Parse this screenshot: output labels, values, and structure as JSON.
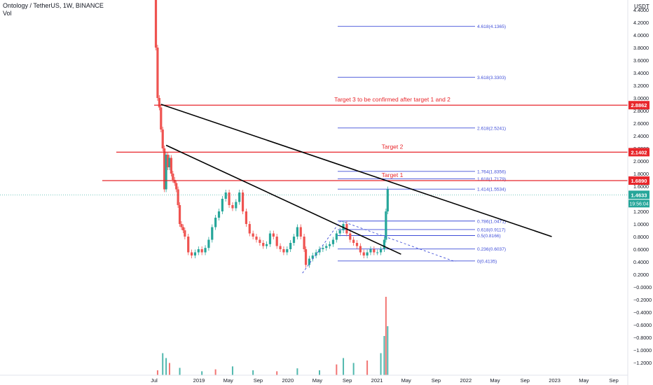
{
  "header": {
    "title": "Ontology / TetherUS, 1W, BINANCE",
    "volume_label": "Vol"
  },
  "chart_data": {
    "type": "candlestick",
    "currency": "USDT",
    "ylim": [
      -1.2,
      4.8
    ],
    "y_ticks": [
      "4.4000",
      "4.2000",
      "4.0000",
      "3.8000",
      "3.6000",
      "3.4000",
      "3.2000",
      "3.0000",
      "2.8000",
      "2.6000",
      "2.4000",
      "2.2000",
      "2.0000",
      "1.8000",
      "1.6000",
      "1.2000",
      "1.0000",
      "0.8000",
      "0.6000",
      "0.4000",
      "0.2000",
      "−0.0000",
      "−0.2000",
      "−0.4000",
      "−0.6000",
      "−0.8000",
      "−1.0000",
      "−1.2000"
    ],
    "y_tick_values": [
      4.4,
      4.2,
      4.0,
      3.8,
      3.6,
      3.4,
      3.2,
      3.0,
      2.8,
      2.6,
      2.4,
      2.2,
      2.0,
      1.8,
      1.6,
      1.2,
      1.0,
      0.8,
      0.6,
      0.4,
      0.2,
      0,
      -0.2,
      -0.4,
      -0.6,
      -0.8,
      -1.0,
      -1.2
    ],
    "x_ticks": [
      "Jul",
      "2019",
      "May",
      "Sep",
      "2020",
      "May",
      "Sep",
      "2021",
      "May",
      "Sep",
      "2022",
      "May",
      "Sep",
      "2023",
      "May",
      "Sep"
    ],
    "x_tick_dates": [
      "2018-07-01",
      "2019-01-01",
      "2019-05-01",
      "2019-09-01",
      "2020-01-01",
      "2020-05-01",
      "2020-09-01",
      "2021-01-01",
      "2021-05-01",
      "2021-09-01",
      "2022-01-01",
      "2022-05-01",
      "2022-09-01",
      "2023-01-01",
      "2023-05-01",
      "2023-09-01"
    ],
    "price_path": [
      [
        "2018-07-01",
        4.7
      ],
      [
        "2018-07-08",
        3.8
      ],
      [
        "2018-07-15",
        3.0
      ],
      [
        "2018-07-22",
        2.85
      ],
      [
        "2018-07-29",
        2.5
      ],
      [
        "2018-08-05",
        2.2
      ],
      [
        "2018-08-12",
        1.55
      ],
      [
        "2018-08-19",
        2.1
      ],
      [
        "2018-08-26",
        1.9
      ],
      [
        "2018-09-02",
        2.05
      ],
      [
        "2018-09-09",
        1.8
      ],
      [
        "2018-09-16",
        1.7
      ],
      [
        "2018-09-23",
        1.65
      ],
      [
        "2018-09-30",
        1.55
      ],
      [
        "2018-10-07",
        1.3
      ],
      [
        "2018-10-14",
        1.0
      ],
      [
        "2018-10-21",
        0.95
      ],
      [
        "2018-10-28",
        0.9
      ],
      [
        "2018-11-04",
        0.8
      ],
      [
        "2018-11-18",
        0.55
      ],
      [
        "2018-12-02",
        0.5
      ],
      [
        "2018-12-16",
        0.55
      ],
      [
        "2018-12-30",
        0.6
      ],
      [
        "2019-01-13",
        0.55
      ],
      [
        "2019-01-27",
        0.62
      ],
      [
        "2019-02-10",
        0.75
      ],
      [
        "2019-02-24",
        0.95
      ],
      [
        "2019-03-10",
        1.1
      ],
      [
        "2019-03-24",
        1.2
      ],
      [
        "2019-04-07",
        1.4
      ],
      [
        "2019-04-21",
        1.5
      ],
      [
        "2019-05-05",
        1.3
      ],
      [
        "2019-05-19",
        1.25
      ],
      [
        "2019-06-02",
        1.35
      ],
      [
        "2019-06-16",
        1.5
      ],
      [
        "2019-06-30",
        1.2
      ],
      [
        "2019-07-14",
        1.0
      ],
      [
        "2019-07-28",
        0.85
      ],
      [
        "2019-08-11",
        0.8
      ],
      [
        "2019-08-25",
        0.75
      ],
      [
        "2019-09-08",
        0.7
      ],
      [
        "2019-09-22",
        0.65
      ],
      [
        "2019-10-06",
        0.68
      ],
      [
        "2019-10-20",
        0.85
      ],
      [
        "2019-11-03",
        0.8
      ],
      [
        "2019-11-17",
        0.65
      ],
      [
        "2019-12-01",
        0.6
      ],
      [
        "2019-12-15",
        0.55
      ],
      [
        "2019-12-29",
        0.6
      ],
      [
        "2020-01-12",
        0.7
      ],
      [
        "2020-01-26",
        0.8
      ],
      [
        "2020-02-09",
        0.95
      ],
      [
        "2020-02-23",
        0.8
      ],
      [
        "2020-03-08",
        0.6
      ],
      [
        "2020-03-15",
        0.35
      ],
      [
        "2020-03-29",
        0.45
      ],
      [
        "2020-04-12",
        0.5
      ],
      [
        "2020-04-26",
        0.55
      ],
      [
        "2020-05-10",
        0.6
      ],
      [
        "2020-05-24",
        0.62
      ],
      [
        "2020-06-07",
        0.65
      ],
      [
        "2020-06-21",
        0.68
      ],
      [
        "2020-07-05",
        0.75
      ],
      [
        "2020-07-19",
        0.85
      ],
      [
        "2020-08-02",
        0.9
      ],
      [
        "2020-08-16",
        1.0
      ],
      [
        "2020-08-30",
        0.85
      ],
      [
        "2020-09-13",
        0.75
      ],
      [
        "2020-09-27",
        0.7
      ],
      [
        "2020-10-11",
        0.65
      ],
      [
        "2020-10-25",
        0.55
      ],
      [
        "2020-11-08",
        0.5
      ],
      [
        "2020-11-22",
        0.55
      ],
      [
        "2020-12-06",
        0.6
      ],
      [
        "2020-12-20",
        0.55
      ],
      [
        "2021-01-03",
        0.55
      ],
      [
        "2021-01-17",
        0.6
      ],
      [
        "2021-01-31",
        0.75
      ],
      [
        "2021-02-07",
        1.2
      ],
      [
        "2021-02-14",
        1.55
      ]
    ],
    "volume_bars": [
      [
        "2018-07-15",
        0.1
      ],
      [
        "2018-08-05",
        0.45
      ],
      [
        "2018-08-19",
        0.35
      ],
      [
        "2018-09-02",
        0.25
      ],
      [
        "2018-10-14",
        0.15
      ],
      [
        "2019-01-13",
        0.08
      ],
      [
        "2019-03-10",
        0.12
      ],
      [
        "2019-05-19",
        0.18
      ],
      [
        "2019-08-11",
        0.1
      ],
      [
        "2019-11-17",
        0.08
      ],
      [
        "2020-02-09",
        0.14
      ],
      [
        "2020-05-10",
        0.1
      ],
      [
        "2020-07-19",
        0.22
      ],
      [
        "2020-08-16",
        0.35
      ],
      [
        "2020-09-27",
        0.25
      ],
      [
        "2020-11-22",
        0.3
      ],
      [
        "2021-01-17",
        0.45
      ],
      [
        "2021-01-31",
        0.8
      ],
      [
        "2021-02-07",
        1.6
      ],
      [
        "2021-02-14",
        1.0
      ]
    ],
    "horizontal_levels": [
      {
        "label": "Target 3 to be confirmed after target 1 and 2",
        "value": 2.8862,
        "price_label": "2.8862",
        "color": "#e8262b"
      },
      {
        "label": "Target 2",
        "value": 2.1402,
        "price_label": "2.1402",
        "color": "#e8262b"
      },
      {
        "label": "Target 1",
        "value": 1.689,
        "price_label": "1.6890",
        "color": "#e8262b"
      }
    ],
    "fib_levels": [
      {
        "label": "4.618(4.1365)",
        "value": 4.1365
      },
      {
        "label": "3.618(3.3303)",
        "value": 3.3303
      },
      {
        "label": "2.618(2.5241)",
        "value": 2.5241
      },
      {
        "label": "1.764(1.8356)",
        "value": 1.8356
      },
      {
        "label": "1.618(1.7179)",
        "value": 1.7179
      },
      {
        "label": "1.414(1.5534)",
        "value": 1.5534
      },
      {
        "label": "0.786(1.0471)",
        "value": 1.0471
      },
      {
        "label": "0.618(0.9117)",
        "value": 0.9117
      },
      {
        "label": "0.5(0.8166)",
        "value": 0.8166
      },
      {
        "label": "0.236(0.6037)",
        "value": 0.6037
      },
      {
        "label": "0(0.4135)",
        "value": 0.4135
      }
    ],
    "fib_color": "#3f4ed8",
    "trend_lines": [
      {
        "name": "upper-trendline",
        "from": [
          "2018-07-29",
          2.9
        ],
        "to": [
          "2022-12-20",
          0.8
        ]
      },
      {
        "name": "lower-trendline",
        "from": [
          "2018-08-19",
          2.25
        ],
        "to": [
          "2021-04-10",
          0.52
        ]
      }
    ],
    "dashed_lines": [
      {
        "name": "dashed-lower",
        "from": [
          "2020-03-01",
          0.22
        ],
        "to": [
          "2020-08-05",
          1.05
        ]
      },
      {
        "name": "dashed-upper",
        "from": [
          "2020-08-05",
          1.05
        ],
        "to": [
          "2021-11-20",
          0.4
        ]
      }
    ],
    "last_price": {
      "value": 1.4633,
      "label": "1.4633",
      "countdown": "19:56:04"
    },
    "up_color": "#26a69a",
    "down_color": "#ef5350"
  }
}
